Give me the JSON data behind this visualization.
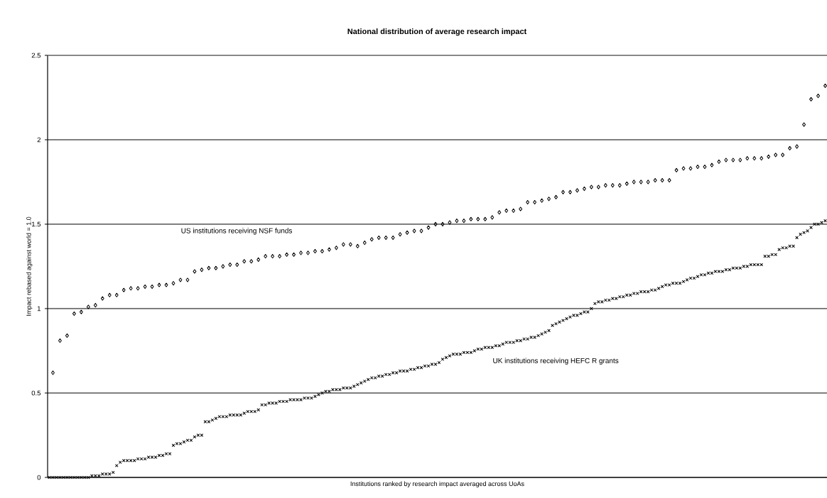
{
  "chart_data": {
    "type": "scatter",
    "title": "National distribution of average research impact",
    "xlabel": "Institutions ranked by research impact averaged across UoAs",
    "ylabel": "Impact rebased against world = 1.0",
    "categories": [
      null,
      null,
      null,
      null,
      null,
      null,
      null,
      null,
      null,
      null,
      null,
      null,
      null,
      null,
      null,
      null,
      null,
      null,
      null,
      null,
      null,
      null,
      null,
      null,
      null,
      null,
      null,
      null,
      null,
      null,
      null,
      null,
      null,
      null,
      null,
      null,
      null,
      null,
      null,
      null,
      null,
      null,
      null,
      null,
      null,
      null,
      null,
      null,
      null,
      null,
      null,
      null,
      null,
      null,
      null,
      null,
      null,
      null,
      null,
      null,
      null,
      null,
      null,
      null,
      null,
      null,
      null,
      null,
      null,
      null,
      null,
      null,
      null,
      null,
      null,
      null,
      null,
      null,
      null,
      null,
      null,
      null,
      null,
      null,
      null,
      null,
      null,
      null,
      null,
      null,
      null,
      null,
      null,
      null,
      null,
      null,
      null,
      null,
      null,
      null,
      null,
      null,
      null,
      null,
      null,
      null,
      null,
      null,
      null,
      null,
      null,
      null,
      null,
      null,
      null,
      null,
      null,
      null,
      null,
      null,
      null,
      null,
      null,
      null,
      null,
      null,
      null,
      null,
      null,
      null,
      null,
      null,
      null,
      null,
      null,
      null,
      null,
      null,
      null,
      null,
      null,
      null,
      null,
      null,
      null,
      null,
      null,
      null,
      null,
      null,
      null,
      null,
      null,
      null,
      null,
      null,
      null,
      null,
      null,
      null,
      null,
      null,
      null,
      null,
      null,
      null,
      null,
      null,
      null,
      null,
      null,
      null,
      null,
      null,
      null,
      null,
      null,
      null,
      null,
      null,
      null,
      null,
      null,
      null,
      null,
      null,
      null,
      null,
      null,
      null,
      null,
      null,
      null,
      null,
      null,
      null,
      null,
      null,
      null,
      null,
      null,
      null,
      null,
      null,
      null,
      null,
      null,
      null,
      null,
      null,
      null,
      null,
      null,
      null,
      null,
      null,
      null,
      null,
      null,
      null
    ],
    "series": [
      {
        "name": "US institutions receiving NSF funds",
        "color": "#000000",
        "marker": "diamond",
        "values": [
          null,
          0.62,
          null,
          0.81,
          null,
          0.84,
          null,
          0.97,
          null,
          0.98,
          null,
          1.01,
          null,
          1.02,
          null,
          1.06,
          null,
          1.08,
          null,
          1.08,
          null,
          1.11,
          null,
          1.12,
          null,
          1.12,
          null,
          1.13,
          null,
          1.13,
          null,
          1.14,
          null,
          1.14,
          null,
          1.15,
          null,
          1.17,
          null,
          1.17,
          null,
          1.22,
          null,
          1.23,
          null,
          1.24,
          null,
          1.24,
          null,
          1.25,
          null,
          1.26,
          null,
          1.26,
          null,
          1.28,
          null,
          1.28,
          null,
          1.29,
          null,
          1.31,
          null,
          1.31,
          null,
          1.31,
          null,
          1.32,
          null,
          1.32,
          null,
          1.33,
          null,
          1.33,
          null,
          1.34,
          null,
          1.34,
          null,
          1.35,
          null,
          1.36,
          null,
          1.38,
          null,
          1.38,
          null,
          1.37,
          null,
          1.39,
          null,
          1.41,
          null,
          1.42,
          null,
          1.42,
          null,
          1.42,
          null,
          1.44,
          null,
          1.45,
          null,
          1.46,
          null,
          1.46,
          null,
          1.48,
          null,
          1.5,
          null,
          1.5,
          null,
          1.51,
          null,
          1.52,
          null,
          1.52,
          null,
          1.53,
          null,
          1.53,
          null,
          1.53,
          null,
          1.54,
          null,
          1.57,
          null,
          1.58,
          null,
          1.58,
          null,
          1.59,
          null,
          1.63,
          null,
          1.63,
          null,
          1.64,
          null,
          1.65,
          null,
          1.66,
          null,
          1.69,
          null,
          1.69,
          null,
          1.7,
          null,
          1.71,
          null,
          1.72,
          null,
          1.72,
          null,
          1.73,
          null,
          1.73,
          null,
          1.73,
          null,
          1.74,
          null,
          1.75,
          null,
          1.75,
          null,
          1.75,
          null,
          1.76,
          null,
          1.76,
          null,
          1.76,
          null,
          1.82,
          null,
          1.83,
          null,
          1.83,
          null,
          1.84,
          null,
          1.84,
          null,
          1.85,
          null,
          1.87,
          null,
          1.88,
          null,
          1.88,
          null,
          1.88,
          null,
          1.89,
          null,
          1.89,
          null,
          1.89,
          null,
          1.9,
          null,
          1.91,
          null,
          1.91,
          null,
          1.95,
          null,
          1.96,
          null,
          2.09,
          null,
          2.24,
          null,
          2.26,
          null,
          2.32
        ]
      },
      {
        "name": "UK institutions receiving HEFC R grants",
        "color": "#000000",
        "marker": "cross",
        "values": [
          0,
          0,
          0,
          0,
          0,
          0,
          0,
          0,
          0,
          0,
          0,
          0,
          0.01,
          0.01,
          0.01,
          0.02,
          0.02,
          0.02,
          0.03,
          0.07,
          0.09,
          0.1,
          0.1,
          0.1,
          0.1,
          0.11,
          0.11,
          0.11,
          0.12,
          0.12,
          0.12,
          0.13,
          0.13,
          0.14,
          0.14,
          0.19,
          0.2,
          0.2,
          0.21,
          0.22,
          0.22,
          0.24,
          0.25,
          0.25,
          0.33,
          0.33,
          0.34,
          0.35,
          0.36,
          0.36,
          0.36,
          0.37,
          0.37,
          0.37,
          0.37,
          0.38,
          0.39,
          0.39,
          0.39,
          0.4,
          0.43,
          0.43,
          0.44,
          0.44,
          0.44,
          0.45,
          0.45,
          0.45,
          0.46,
          0.46,
          0.46,
          0.46,
          0.47,
          0.47,
          0.47,
          0.48,
          0.49,
          0.5,
          0.51,
          0.51,
          0.52,
          0.52,
          0.52,
          0.53,
          0.53,
          0.53,
          0.54,
          0.55,
          0.56,
          0.57,
          0.58,
          0.59,
          0.59,
          0.6,
          0.6,
          0.61,
          0.61,
          0.62,
          0.62,
          0.63,
          0.63,
          0.63,
          0.64,
          0.64,
          0.65,
          0.65,
          0.66,
          0.66,
          0.67,
          0.67,
          0.68,
          0.7,
          0.71,
          0.72,
          0.73,
          0.73,
          0.73,
          0.74,
          0.74,
          0.74,
          0.75,
          0.76,
          0.76,
          0.77,
          0.77,
          0.77,
          0.78,
          0.78,
          0.79,
          0.8,
          0.8,
          0.8,
          0.81,
          0.81,
          0.82,
          0.82,
          0.83,
          0.83,
          0.84,
          0.85,
          0.86,
          0.87,
          0.9,
          0.91,
          0.92,
          0.93,
          0.94,
          0.95,
          0.96,
          0.96,
          0.97,
          0.98,
          0.98,
          1.0,
          1.03,
          1.04,
          1.04,
          1.05,
          1.05,
          1.06,
          1.06,
          1.07,
          1.07,
          1.08,
          1.08,
          1.09,
          1.09,
          1.1,
          1.1,
          1.1,
          1.11,
          1.11,
          1.12,
          1.13,
          1.14,
          1.14,
          1.15,
          1.15,
          1.15,
          1.16,
          1.17,
          1.18,
          1.18,
          1.19,
          1.2,
          1.2,
          1.21,
          1.21,
          1.22,
          1.22,
          1.22,
          1.23,
          1.23,
          1.24,
          1.24,
          1.24,
          1.25,
          1.25,
          1.26,
          1.26,
          1.26,
          1.26,
          1.31,
          1.31,
          1.32,
          1.32,
          1.35,
          1.36,
          1.36,
          1.37,
          1.37,
          1.42,
          1.44,
          1.45,
          1.46,
          1.48,
          1.5,
          1.5,
          1.51,
          1.52
        ]
      }
    ],
    "ylim": [
      0,
      2.5
    ],
    "yticks": [
      0,
      0.5,
      1,
      1.5,
      2,
      2.5
    ],
    "grid": "y",
    "legend": false,
    "tick_labels": "y"
  }
}
